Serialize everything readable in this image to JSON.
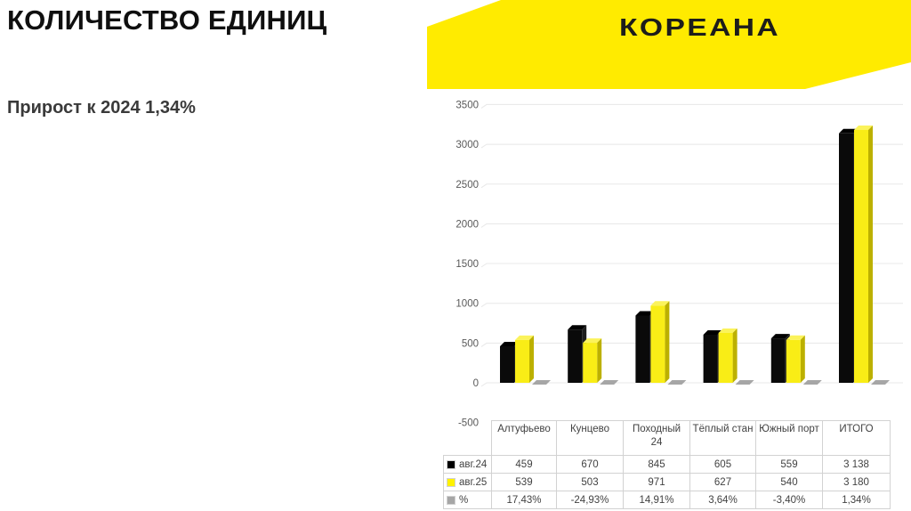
{
  "slide": {
    "title": "КОЛИЧЕСТВО ЕДИНИЦ",
    "subtitle": "Прирост к 2024 1,34%",
    "logo_text": "КОРЕАНА",
    "colors": {
      "banner_yellow": "#FFEB00",
      "gridline": "#E8E8E8",
      "axis_text": "#595959",
      "table_border": "#D2D2D2",
      "shadow_gray": "#A6A6A6"
    }
  },
  "chart_data": {
    "type": "bar",
    "style": "3d-column",
    "title": "",
    "xlabel": "",
    "ylabel": "",
    "grid": true,
    "ylim": [
      -500,
      3500
    ],
    "y_ticks": [
      3500,
      3000,
      2500,
      2000,
      1500,
      1000,
      500,
      0,
      -500
    ],
    "categories": [
      "Алтуфьево",
      "Кунцево",
      "Походный 24",
      "Тёплый стан",
      "Южный порт",
      "ИТОГО"
    ],
    "series": [
      {
        "name": "авг.24",
        "color": "#0A0A0A",
        "color_top": "#000000",
        "color_side": "#1E1E1E",
        "values": [
          459,
          670,
          845,
          605,
          559,
          3138
        ]
      },
      {
        "name": "авг.25",
        "color": "#F9ED16",
        "color_top": "#FBF35B",
        "color_side": "#BCB000",
        "values": [
          539,
          503,
          971,
          627,
          540,
          3180
        ]
      },
      {
        "name": "%",
        "color": "#A6A6A6",
        "color_top": "#A6A6A6",
        "color_side": "#A6A6A6",
        "values": [
          17.43,
          -24.93,
          14.91,
          3.64,
          -3.4,
          1.34
        ]
      }
    ],
    "legend_position": "table-left"
  },
  "table": {
    "corner": "",
    "headers": [
      "Алтуфьево",
      "Кунцево",
      "Походный 24",
      "Тёплый стан",
      "Южный порт",
      "ИТОГО"
    ],
    "rows": [
      {
        "legend": "авг.24",
        "swatch": "#000000",
        "values": [
          "459",
          "670",
          "845",
          "605",
          "559",
          "3 138"
        ]
      },
      {
        "legend": "авг.25",
        "swatch": "#FFF200",
        "values": [
          "539",
          "503",
          "971",
          "627",
          "540",
          "3 180"
        ]
      },
      {
        "legend": "%",
        "swatch": "#A6A6A6",
        "values": [
          "17,43%",
          "-24,93%",
          "14,91%",
          "3,64%",
          "-3,40%",
          "1,34%"
        ]
      }
    ]
  }
}
